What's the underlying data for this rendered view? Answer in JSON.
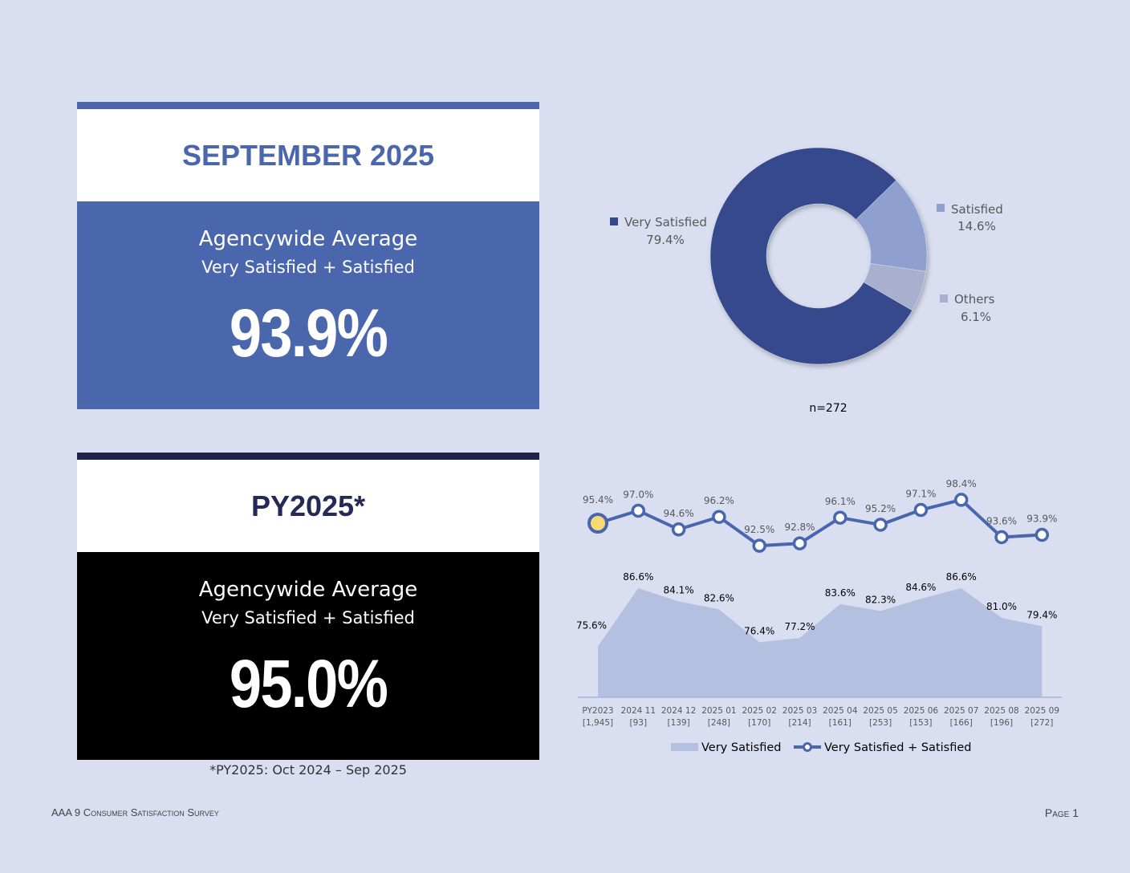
{
  "card_month": {
    "heading": "SEPTEMBER 2025",
    "label": "Agencywide Average",
    "sublabel": "Very Satisfied + Satisfied",
    "value": "93.9%"
  },
  "card_year": {
    "heading": "PY2025*",
    "label": "Agencywide Average",
    "sublabel": "Very Satisfied + Satisfied",
    "value": "95.0%"
  },
  "footnote": "*PY2025: Oct 2024 – Sep 2025",
  "footer": {
    "left": "AAA 9 Consumer Satisfaction Survey",
    "right": "Page 1"
  },
  "colors": {
    "accent_blue": "#4a67ad",
    "navy": "#1f2449",
    "very_satisfied": "#34488c",
    "satisfied": "#8e9fd0",
    "others": "#a9b0cf",
    "area_fill": "#b4c0e0",
    "line": "#4a67ad",
    "highlight_marker": "#f8da74"
  },
  "chart_data": [
    {
      "type": "pie",
      "variant": "donut",
      "slices": [
        {
          "label": "Very Satisfied",
          "value": 79.4,
          "display": "79.4%"
        },
        {
          "label": "Satisfied",
          "value": 14.6,
          "display": "14.6%"
        },
        {
          "label": "Others",
          "value": 6.1,
          "display": "6.1%"
        }
      ],
      "annotation": "n=272"
    },
    {
      "type": "line",
      "categories": [
        "PY2023",
        "2024 11",
        "2024 12",
        "2025 01",
        "2025 02",
        "2025 03",
        "2025 04",
        "2025 05",
        "2025 06",
        "2025 07",
        "2025 08",
        "2025 09"
      ],
      "category_counts": [
        "[1,945]",
        "[93]",
        "[139]",
        "[248]",
        "[170]",
        "[214]",
        "[161]",
        "[253]",
        "[153]",
        "[166]",
        "[196]",
        "[272]"
      ],
      "series": [
        {
          "name": "Very Satisfied",
          "type": "area",
          "values": [
            75.6,
            86.6,
            84.1,
            82.6,
            76.4,
            77.2,
            83.6,
            82.3,
            84.6,
            86.6,
            81.0,
            79.4
          ],
          "labels": [
            "75.6%",
            "86.6%",
            "84.1%",
            "82.6%",
            "76.4%",
            "77.2%",
            "83.6%",
            "82.3%",
            "84.6%",
            "86.6%",
            "81.0%",
            "79.4%"
          ]
        },
        {
          "name": "Very Satisfied + Satisfied",
          "type": "line",
          "values": [
            95.4,
            97.0,
            94.6,
            96.2,
            92.5,
            92.8,
            96.1,
            95.2,
            97.1,
            98.4,
            93.6,
            93.9
          ],
          "labels": [
            "95.4%",
            "97.0%",
            "94.6%",
            "96.2%",
            "92.5%",
            "92.8%",
            "96.1%",
            "95.2%",
            "97.1%",
            "98.4%",
            "93.6%",
            "93.9%"
          ]
        }
      ],
      "legend_position": "bottom"
    }
  ]
}
